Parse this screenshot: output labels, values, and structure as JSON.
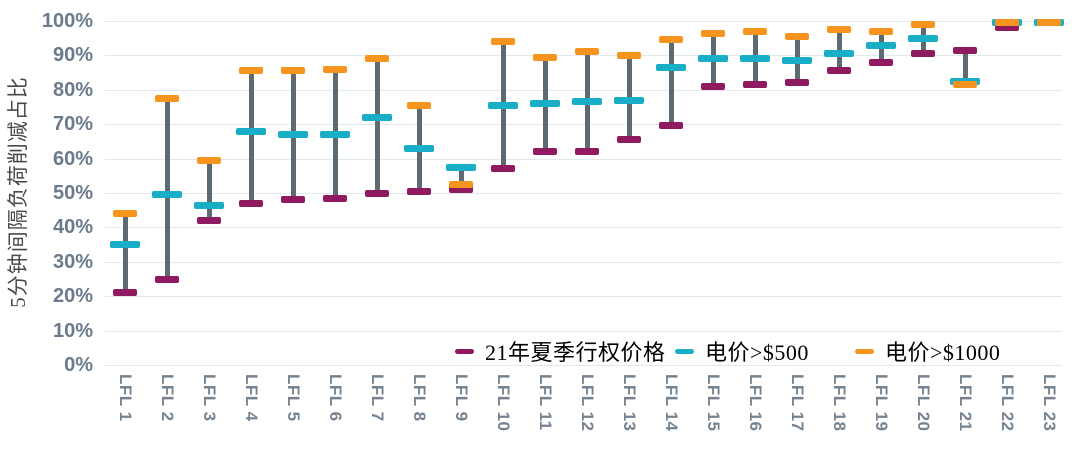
{
  "chart_data": {
    "type": "bar",
    "subtype": "floating-range-with-markers",
    "title": "",
    "xlabel": "",
    "ylabel": "5分钟间隔负荷削减占比",
    "ylim": [
      0,
      100
    ],
    "ytick_step": 10,
    "ytick_labels": [
      "0%",
      "10%",
      "20%",
      "30%",
      "40%",
      "50%",
      "60%",
      "70%",
      "80%",
      "90%",
      "100%"
    ],
    "grid": "horizontal",
    "legend_position": "bottom-inside",
    "categories": [
      "LFL 1",
      "LFL 2",
      "LFL 3",
      "LFL 4",
      "LFL 5",
      "LFL 6",
      "LFL 7",
      "LFL 8",
      "LFL 9",
      "LFL 10",
      "LFL 11",
      "LFL 12",
      "LFL 13",
      "LFL 14",
      "LFL 15",
      "LFL 16",
      "LFL 17",
      "LFL 18",
      "LFL 19",
      "LFL 20",
      "LFL 21",
      "LFL 22",
      "LFL 23"
    ],
    "series": [
      {
        "name": "21年夏季行权价格",
        "color": "#8f1a60",
        "values": [
          21,
          25,
          42,
          47,
          48,
          48.5,
          50,
          50.5,
          51,
          57,
          62,
          62,
          65.5,
          69.5,
          81,
          81.5,
          82,
          85.5,
          88,
          90.5,
          91.5,
          98,
          99.5
        ]
      },
      {
        "name": "电价>$500",
        "color": "#17aec6",
        "values": [
          35,
          49.5,
          46.5,
          68,
          67,
          67,
          72,
          63,
          57.5,
          75.5,
          76,
          76.5,
          77,
          86.5,
          89,
          89,
          88.5,
          90.5,
          93,
          95,
          82.5,
          99.5,
          99.5
        ]
      },
      {
        "name": "电价>$1000",
        "color": "#f7941d",
        "values": [
          44,
          77.5,
          59.5,
          85.5,
          85.5,
          86,
          89,
          75.5,
          52.5,
          94,
          89.5,
          91,
          90,
          94.5,
          96.5,
          97,
          95.5,
          97.5,
          97,
          99,
          81.5,
          99.5,
          99.5
        ]
      }
    ],
    "colors": {
      "gridline": "#e3e8ec",
      "connector": "#5d6a72",
      "ytick_label": "#6b7a8c",
      "xtick_label": "#75828f"
    }
  }
}
